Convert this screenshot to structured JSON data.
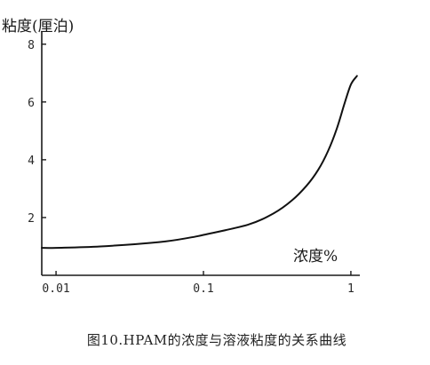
{
  "chart_data": {
    "type": "line",
    "ylabel": "粘度(厘泊)",
    "xlabel": "浓度%",
    "caption": "图10.HPAM的浓度与溶液粘度的关系曲线",
    "x_scale": "log",
    "xlim": [
      0.008,
      1.15
    ],
    "ylim": [
      0,
      8.3
    ],
    "x_ticks": [
      {
        "value": 0.01,
        "label": "0.01"
      },
      {
        "value": 0.1,
        "label": "0.1"
      },
      {
        "value": 1,
        "label": "1"
      }
    ],
    "y_ticks": [
      {
        "value": 2,
        "label": "2"
      },
      {
        "value": 4,
        "label": "4"
      },
      {
        "value": 6,
        "label": "6"
      },
      {
        "value": 8,
        "label": "8"
      }
    ],
    "grid": false,
    "series": [
      {
        "x": [
          0.008,
          0.01,
          0.02,
          0.05,
          0.08,
          0.1,
          0.2,
          0.3,
          0.4,
          0.5,
          0.6,
          0.7,
          0.8,
          0.9,
          1.0,
          1.1
        ],
        "y": [
          0.95,
          0.95,
          1.0,
          1.15,
          1.3,
          1.4,
          1.75,
          2.15,
          2.6,
          3.1,
          3.65,
          4.3,
          5.05,
          5.9,
          6.6,
          6.9
        ]
      }
    ]
  }
}
